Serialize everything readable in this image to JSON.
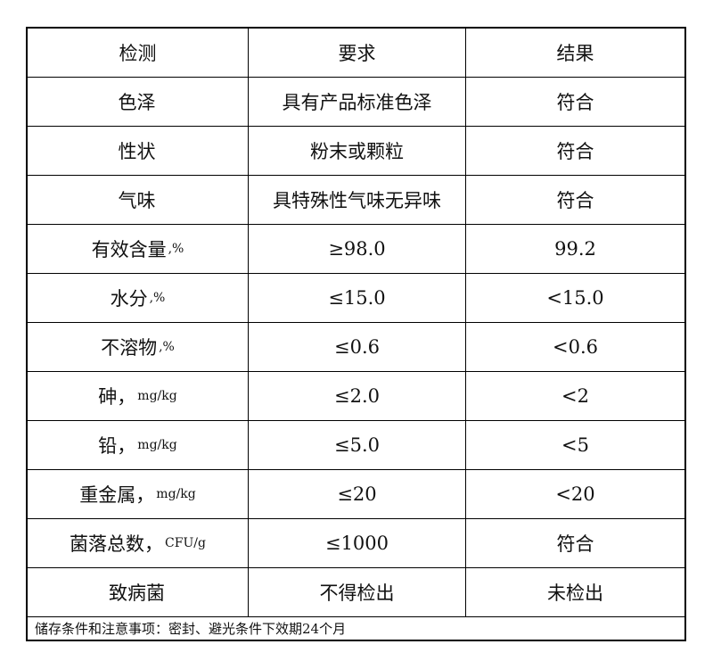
{
  "header": [
    "检测",
    "要求",
    "结果"
  ],
  "rows": [
    {
      "item": "色泽",
      "unit": "",
      "requirement": "具有产品标准色泽",
      "result": "符合"
    },
    {
      "item": "性状",
      "unit": "",
      "requirement": "粉末或颗粒",
      "result": "符合"
    },
    {
      "item": "气味",
      "unit": "",
      "requirement": "具特殊性气味无异味",
      "result": "符合"
    },
    {
      "item": "有效含量",
      "unit": ",%",
      "requirement": "≥98.0",
      "result": "99.2"
    },
    {
      "item": "水分",
      "unit": ",%",
      "requirement": "≤15.0",
      "result": "<15.0"
    },
    {
      "item": "不溶物",
      "unit": ",%",
      "requirement": "≤0.6",
      "result": "<0.6"
    },
    {
      "item": "砷，",
      "unit": "mg/kg",
      "requirement": "≤2.0",
      "result": "<2"
    },
    {
      "item": "铅，",
      "unit": "mg/kg",
      "requirement": "≤5.0",
      "result": "<5"
    },
    {
      "item": "重金属，",
      "unit": "mg/kg",
      "requirement": "≤20",
      "result": "<20"
    },
    {
      "item": "菌落总数，",
      "unit": "CFU/g",
      "requirement": "≤1000",
      "result": "符合"
    },
    {
      "item": "致病菌",
      "unit": "",
      "requirement": "不得检出",
      "result": "未检出"
    }
  ],
  "footer": "储存条件和注意事项：密封、避光条件下效期24个月"
}
